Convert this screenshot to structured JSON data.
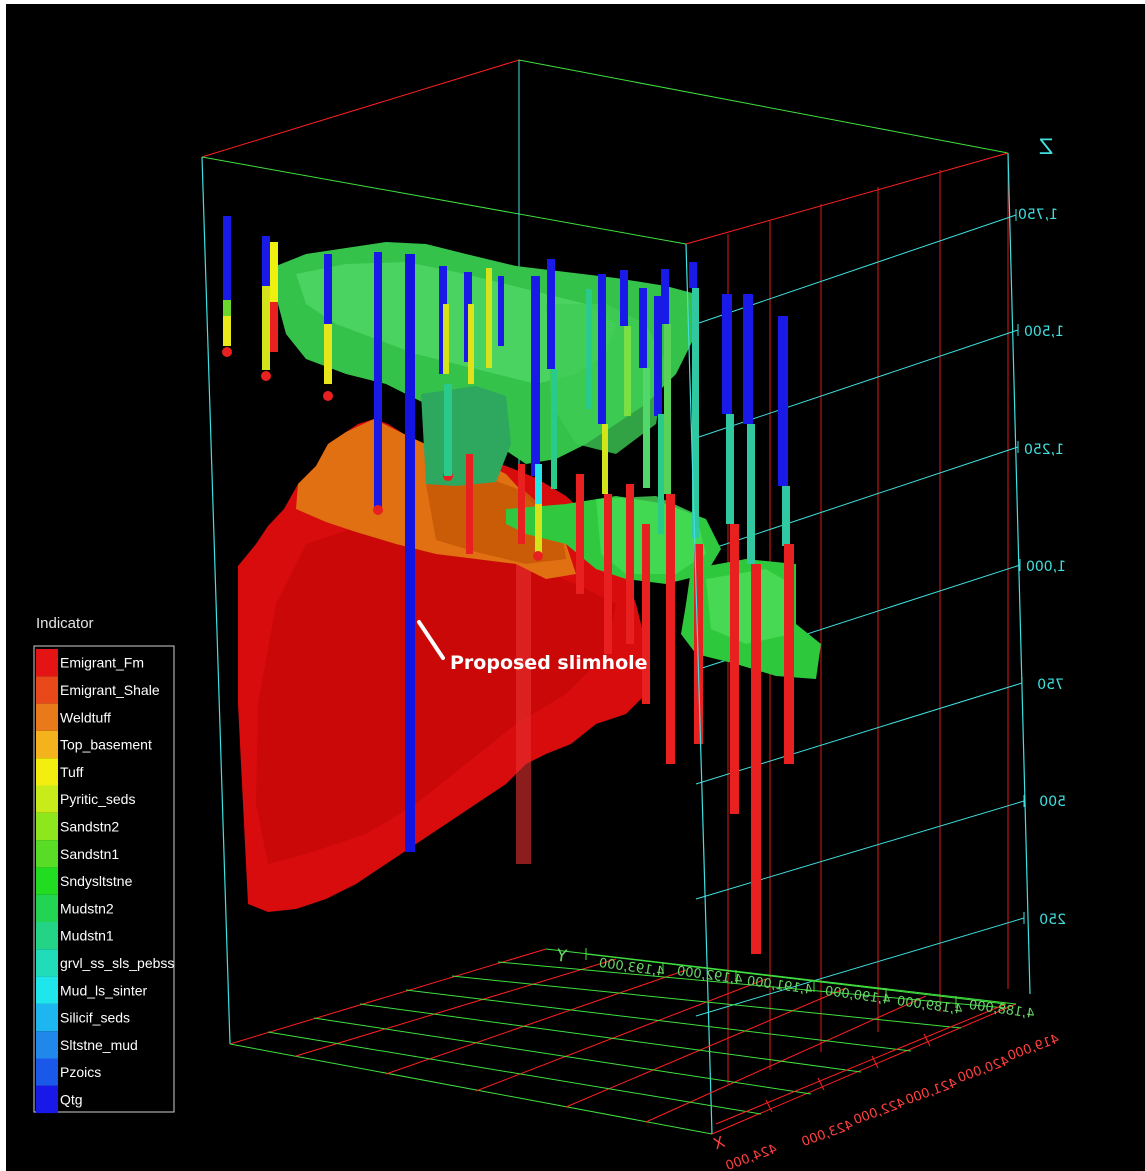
{
  "legend": {
    "title": "Indicator",
    "items": [
      {
        "label": "Emigrant_Fm",
        "color": "#e41414"
      },
      {
        "label": "Emigrant_Shale",
        "color": "#e8481a"
      },
      {
        "label": "Weldtuff",
        "color": "#e87a1c"
      },
      {
        "label": "Top_basement",
        "color": "#f4b21c"
      },
      {
        "label": "Tuff",
        "color": "#f4ee10"
      },
      {
        "label": "Pyritic_seds",
        "color": "#c8ec1a"
      },
      {
        "label": "Sandstn2",
        "color": "#8ee61c"
      },
      {
        "label": "Sandstn1",
        "color": "#58dc26"
      },
      {
        "label": "Sndysltstne",
        "color": "#22dc22"
      },
      {
        "label": "Mudstn2",
        "color": "#22d452"
      },
      {
        "label": "Mudstn1",
        "color": "#24d486"
      },
      {
        "label": "grvl_ss_sls_pebss",
        "color": "#20dcb8"
      },
      {
        "label": "Mud_ls_sinter",
        "color": "#1ee6ea"
      },
      {
        "label": "Silicif_seds",
        "color": "#1eb6f0"
      },
      {
        "label": "Sltstne_mud",
        "color": "#2088ea"
      },
      {
        "label": "Pzoics",
        "color": "#1a58ea"
      },
      {
        "label": "Qtg",
        "color": "#1818e8"
      }
    ]
  },
  "annotation": "Proposed slimhole",
  "axes": {
    "z_label": "Z",
    "z_ticks": [
      "1,750",
      "1,500",
      "1,250",
      "1,000",
      "750",
      "500",
      "250"
    ],
    "y_label": "Y",
    "y_ticks": [
      "4,193,000",
      "4,192,000",
      "4,191,000",
      "4,190,000",
      "4,189,000",
      "4,188,000"
    ],
    "x_label": "X",
    "x_ticks": [
      "424,000",
      "423,000",
      "422,000",
      "421,000",
      "420,000",
      "419,000"
    ]
  },
  "colors": {
    "box_cyan": "#40e0e0",
    "box_red": "#ff2020",
    "box_green": "#40e040",
    "background": "#000000"
  }
}
